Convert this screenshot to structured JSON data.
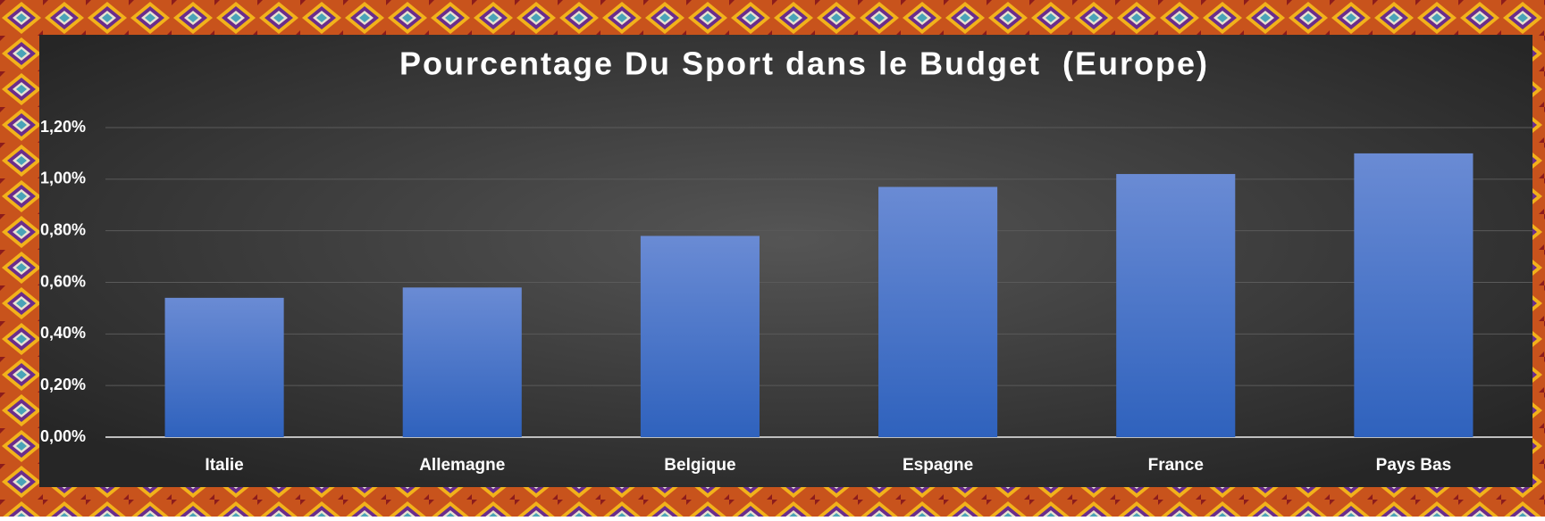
{
  "chart_data": {
    "type": "bar",
    "title": "Pourcentage Du Sport dans le Budget  (Europe)",
    "categories": [
      "Italie",
      "Allemagne",
      "Belgique",
      "Espagne",
      "France",
      "Pays Bas"
    ],
    "values": [
      0.54,
      0.58,
      0.78,
      0.97,
      1.02,
      1.1
    ],
    "color": "#4472c4",
    "ylim": [
      0,
      1.2
    ],
    "yticks": [
      {
        "value": 0,
        "label": "0,00%"
      },
      {
        "value": 0.2,
        "label": "0,20%"
      },
      {
        "value": 0.4,
        "label": "0,40%"
      },
      {
        "value": 0.6,
        "label": "0,60%"
      },
      {
        "value": 0.8,
        "label": "0,80%"
      },
      {
        "value": 1.0,
        "label": "1,00%"
      },
      {
        "value": 1.2,
        "label": "1,20%"
      }
    ],
    "grid": true
  }
}
